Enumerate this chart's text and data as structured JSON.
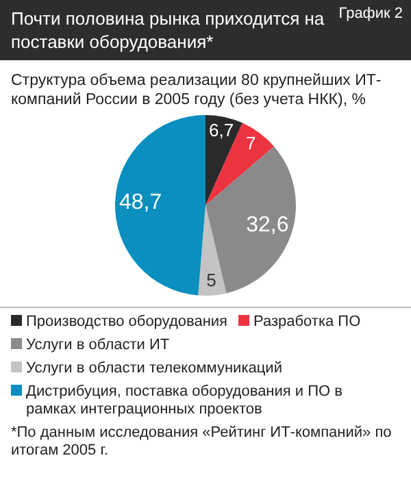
{
  "chart_data": {
    "type": "pie",
    "title": "Почти половина рынка приходится на поставки оборудования*",
    "subtitle": "Структура объема реализации 80 крупнейших ИТ-компаний  России в 2005 году (без учета НКК), %",
    "annotations": [
      "График 2",
      "*По данным исследования «Рейтинг ИТ-компаний» по итогам 2005 г."
    ],
    "categories": [
      "Производство оборудования",
      "Разработка ПО",
      "Услуги в области ИТ",
      "Услуги в области телекоммуникаций",
      "Дистрибуция, поставка оборудования и ПО в рамках интеграционных проектов"
    ],
    "values": [
      6.7,
      7,
      32.6,
      5,
      48.7
    ],
    "value_labels": [
      "6,7",
      "7",
      "32,6",
      "5",
      "48,7"
    ],
    "colors": [
      "#2b2a2a",
      "#ee3340",
      "#8a8a8c",
      "#c4c4c4",
      "#0a8fbe"
    ],
    "legend": "bottom"
  }
}
